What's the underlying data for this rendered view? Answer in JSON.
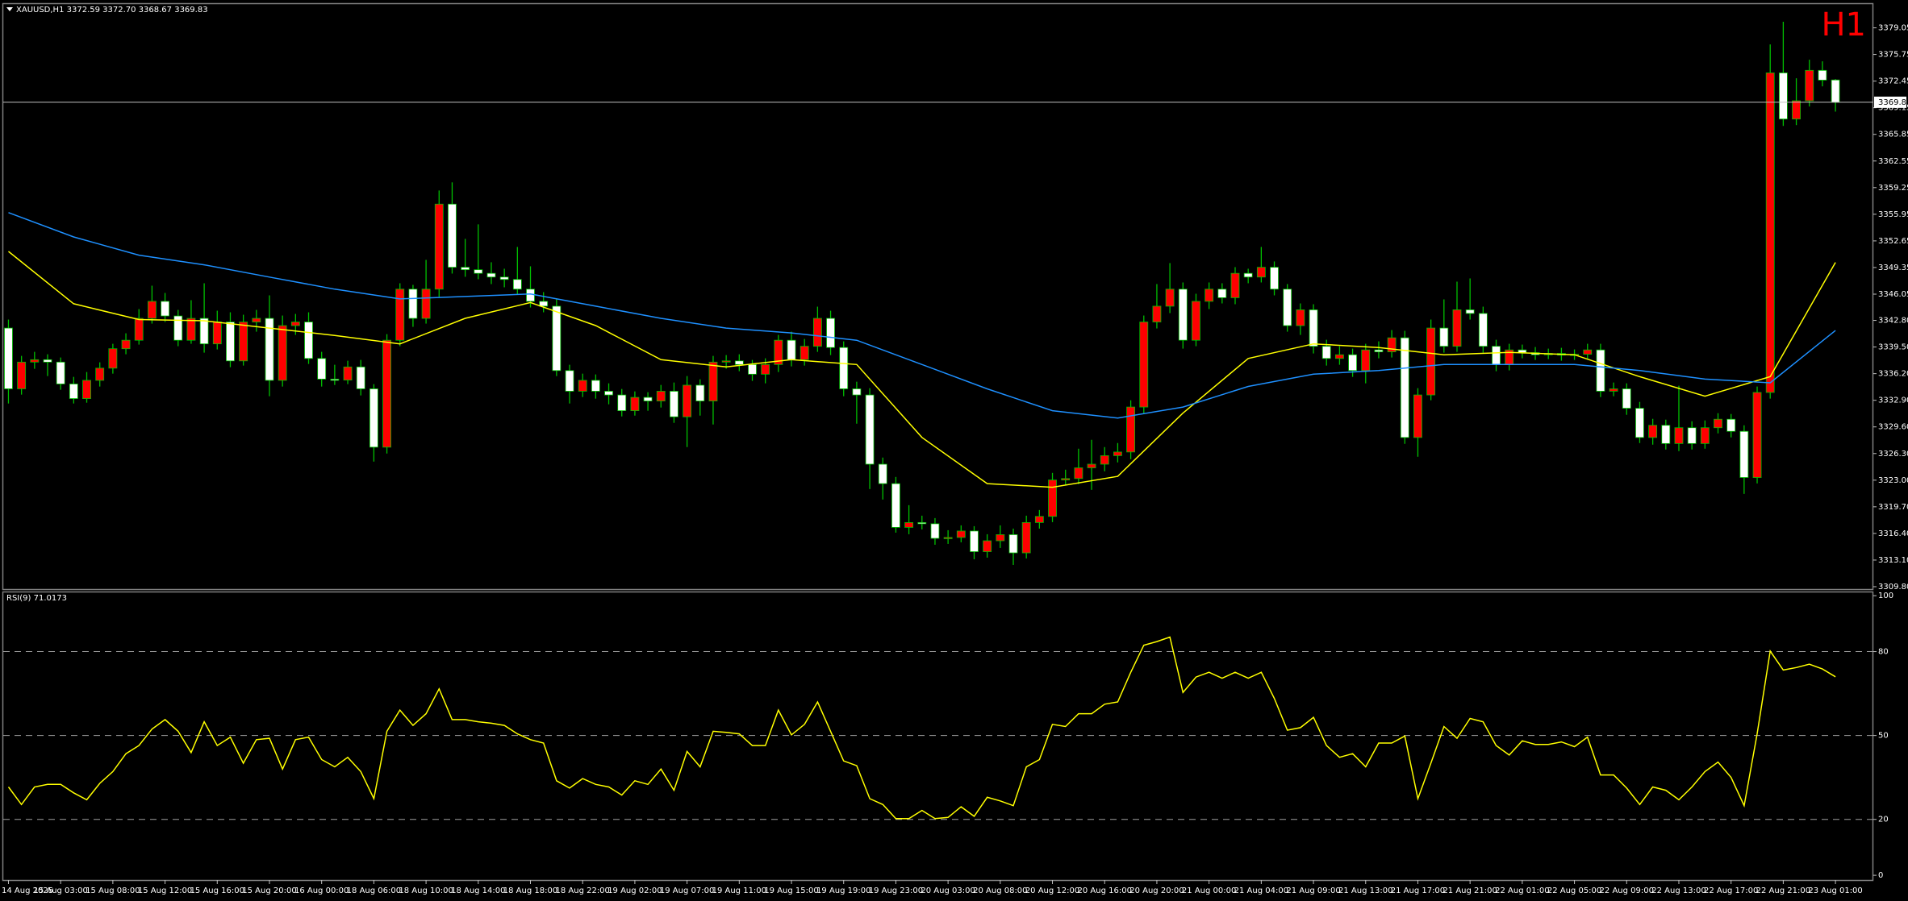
{
  "header": {
    "title": "XAUUSD,H1  3372.59 3372.70 3368.67 3369.83",
    "timeframe": "H1"
  },
  "chart_data": [
    {
      "type": "candlestick",
      "up_color": "#ff0000",
      "down_color": "#ffffff",
      "wick_color": "#00c000",
      "xlim": [
        -0.4,
        142.9
      ],
      "ylim": [
        3309.6,
        3381.9
      ],
      "yticks": [
        3379.05,
        3375.75,
        3372.45,
        3369.15,
        3365.85,
        3362.55,
        3359.25,
        3355.95,
        3352.65,
        3349.35,
        3346.05,
        {
          "value": 3342.8,
          "label": "3342.80"
        },
        {
          "value": 3339.5,
          "label": "3339.50"
        },
        {
          "value": 3336.2,
          "label": "3336.20"
        },
        {
          "value": 3332.9,
          "label": "3332.90"
        },
        {
          "value": 3329.6,
          "label": "3329.60"
        },
        {
          "value": 3326.3,
          "label": "3326.30"
        },
        {
          "value": 3323,
          "label": "3323.00"
        },
        {
          "value": 3319.7,
          "label": "3319.70"
        },
        {
          "value": 3316.4,
          "label": "3316.40"
        },
        {
          "value": 3313.1,
          "label": "3313.10"
        },
        {
          "value": 3309.8,
          "label": "3309.80"
        }
      ],
      "xticks": [
        {
          "value": 0,
          "label": "14 Aug 2025"
        },
        {
          "value": 4,
          "label": "15 Aug 03:00"
        },
        {
          "value": 8,
          "label": "15 Aug 08:00"
        },
        {
          "value": 12,
          "label": "15 Aug 12:00"
        },
        {
          "value": 16,
          "label": "15 Aug 16:00"
        },
        {
          "value": 20,
          "label": "15 Aug 20:00"
        },
        {
          "value": 24,
          "label": "16 Aug 00:00"
        },
        {
          "value": 28,
          "label": "18 Aug 06:00"
        },
        {
          "value": 32,
          "label": "18 Aug 10:00"
        },
        {
          "value": 36,
          "label": "18 Aug 14:00"
        },
        {
          "value": 40,
          "label": "18 Aug 18:00"
        },
        {
          "value": 44,
          "label": "18 Aug 22:00"
        },
        {
          "value": 48,
          "label": "19 Aug 02:00"
        },
        {
          "value": 52,
          "label": "19 Aug 07:00"
        },
        {
          "value": 56,
          "label": "19 Aug 11:00"
        },
        {
          "value": 60,
          "label": "19 Aug 15:00"
        },
        {
          "value": 64,
          "label": "19 Aug 19:00"
        },
        {
          "value": 68,
          "label": "19 Aug 23:00"
        },
        {
          "value": 72,
          "label": "20 Aug 03:00"
        },
        {
          "value": 76,
          "label": "20 Aug 08:00"
        },
        {
          "value": 80,
          "label": "20 Aug 12:00"
        },
        {
          "value": 84,
          "label": "20 Aug 16:00"
        },
        {
          "value": 88,
          "label": "20 Aug 20:00"
        },
        {
          "value": 92,
          "label": "21 Aug 00:00"
        },
        {
          "value": 96,
          "label": "21 Aug 04:00"
        },
        {
          "value": 100,
          "label": "21 Aug 09:00"
        },
        {
          "value": 104,
          "label": "21 Aug 13:00"
        },
        {
          "value": 108,
          "label": "21 Aug 17:00"
        },
        {
          "value": 112,
          "label": "21 Aug 21:00"
        },
        {
          "value": 116,
          "label": "22 Aug 01:00"
        },
        {
          "value": 120,
          "label": "22 Aug 05:00"
        },
        {
          "value": 124,
          "label": "22 Aug 09:00"
        },
        {
          "value": 128,
          "label": "22 Aug 13:00"
        },
        {
          "value": 132,
          "label": "22 Aug 17:00"
        },
        {
          "value": 136,
          "label": "22 Aug 21:00"
        },
        {
          "value": 140,
          "label": "23 Aug 01:00"
        }
      ],
      "last_price": 3369.83,
      "last_price_color": "#c0c0c0",
      "open": [
        3341.85,
        3334.32,
        3337.63,
        3337.93,
        3337.63,
        3334.92,
        3333.11,
        3335.37,
        3336.88,
        3339.29,
        3340.34,
        3343.05,
        3345.16,
        3343.35,
        3340.34,
        3343.05,
        3339.89,
        3342.6,
        3337.78,
        3342.6,
        3343.05,
        3335.37,
        3342.15,
        3342.6,
        3338.08,
        3335.52,
        3335.4,
        3337.03,
        3334.32,
        3327.09,
        3340.34,
        3346.67,
        3343.05,
        3346.67,
        3357.21,
        3349.38,
        3349.08,
        3348.63,
        3348.17,
        3347.87,
        3346.67,
        3345.16,
        3344.56,
        3336.58,
        3334.02,
        3335.37,
        3334.02,
        3333.56,
        3331.61,
        3333.26,
        3332.81,
        3334.02,
        3330.85,
        3334.77,
        3332.81,
        3337.63,
        3337.78,
        3337.33,
        3336.13,
        3337.33,
        3340.34,
        3337.93,
        3339.59,
        3343.05,
        3339.44,
        3334.32,
        3333.56,
        3324.98,
        3322.57,
        3317.15,
        3317.75,
        3317.6,
        3315.79,
        3315.9,
        3316.7,
        3314.14,
        3315.49,
        3316.25,
        3313.99,
        3317.75,
        3318.51,
        3323.02,
        3323.2,
        3324.53,
        3324.98,
        3326.04,
        3326.49,
        3332.06,
        3342.6,
        3344.56,
        3346.67,
        3340.34,
        3345.16,
        3346.67,
        3345.61,
        3348.63,
        3348.17,
        3349.38,
        3346.67,
        3342.15,
        3344.11,
        3339.59,
        3338.08,
        3338.54,
        3336.58,
        3339.14,
        3338.9,
        3340.64,
        3328.29,
        3333.56,
        3341.85,
        3339.59,
        3344.11,
        3343.66,
        3339.59,
        3337.33,
        3339.14,
        3338.8,
        3338.54,
        3338.7,
        3338.5,
        3338.6,
        3339.14,
        3334.02,
        3334.32,
        3331.91,
        3328.29,
        3329.8,
        3327.54,
        3329.5,
        3327.54,
        3329.5,
        3330.55,
        3329.05,
        3323.33,
        3333.87,
        3373.47,
        3367.75,
        3370.01,
        3373.78,
        3372.59
      ],
      "high": [
        3342.9,
        3338.4,
        3338.9,
        3338.6,
        3338.2,
        3335.8,
        3336.4,
        3337.6,
        3339.9,
        3341.2,
        3344.2,
        3347.1,
        3346.2,
        3344.1,
        3345.3,
        3347.4,
        3344.0,
        3343.8,
        3343.5,
        3344.1,
        3345.9,
        3343.4,
        3343.6,
        3343.8,
        3338.9,
        3337.3,
        3337.8,
        3337.9,
        3334.9,
        3341.1,
        3347.4,
        3347.2,
        3350.3,
        3358.9,
        3359.9,
        3352.9,
        3354.7,
        3350.0,
        3349.2,
        3351.9,
        3349.5,
        3346.3,
        3345.4,
        3337.3,
        3336.2,
        3336.1,
        3335.0,
        3334.3,
        3334.0,
        3333.9,
        3334.8,
        3335.1,
        3335.9,
        3335.5,
        3338.4,
        3338.5,
        3338.6,
        3337.9,
        3338.1,
        3341.0,
        3341.4,
        3340.5,
        3344.5,
        3344.0,
        3340.2,
        3335.2,
        3334.4,
        3325.8,
        3323.4,
        3319.9,
        3318.6,
        3318.3,
        3316.8,
        3317.4,
        3317.3,
        3316.3,
        3317.4,
        3317.0,
        3318.6,
        3319.3,
        3323.9,
        3324.3,
        3326.9,
        3328.0,
        3327.1,
        3327.6,
        3332.9,
        3343.4,
        3347.3,
        3349.9,
        3347.5,
        3346.1,
        3347.5,
        3347.4,
        3349.4,
        3349.2,
        3351.9,
        3350.1,
        3347.3,
        3344.9,
        3344.8,
        3340.4,
        3339.6,
        3339.3,
        3339.9,
        3340.2,
        3341.6,
        3341.5,
        3334.4,
        3342.9,
        3345.4,
        3347.6,
        3348.0,
        3344.5,
        3340.4,
        3339.9,
        3339.8,
        3339.5,
        3339.3,
        3339.4,
        3339.2,
        3339.9,
        3339.9,
        3335.1,
        3335.0,
        3332.7,
        3330.6,
        3330.5,
        3334.7,
        3330.3,
        3330.4,
        3331.3,
        3331.2,
        3329.8,
        3334.6,
        3377.0,
        3379.8,
        3372.8,
        3375.1,
        3374.9,
        3372.7
      ],
      "low": [
        3332.5,
        3333.6,
        3336.8,
        3335.9,
        3334.2,
        3332.5,
        3332.6,
        3334.6,
        3336.2,
        3338.6,
        3339.8,
        3342.4,
        3342.6,
        3339.6,
        3339.9,
        3338.8,
        3339.2,
        3337.0,
        3337.2,
        3341.4,
        3333.4,
        3334.6,
        3341.0,
        3337.4,
        3334.6,
        3334.8,
        3334.9,
        3333.5,
        3325.3,
        3326.3,
        3339.6,
        3342.0,
        3342.4,
        3345.6,
        3348.6,
        3348.2,
        3347.9,
        3347.3,
        3346.9,
        3346.0,
        3344.4,
        3343.8,
        3335.9,
        3332.5,
        3333.3,
        3333.1,
        3332.4,
        3330.9,
        3331.0,
        3331.6,
        3332.0,
        3330.1,
        3327.1,
        3331.0,
        3329.9,
        3336.8,
        3336.5,
        3335.3,
        3335.0,
        3336.4,
        3337.1,
        3337.2,
        3338.9,
        3338.5,
        3333.4,
        3330.0,
        3321.9,
        3320.6,
        3316.5,
        3316.3,
        3316.9,
        3315.0,
        3315.1,
        3315.3,
        3313.2,
        3313.4,
        3314.6,
        3312.5,
        3313.3,
        3317.0,
        3317.8,
        3322.4,
        3322.5,
        3321.8,
        3324.1,
        3325.2,
        3325.6,
        3331.3,
        3341.8,
        3343.7,
        3339.3,
        3339.6,
        3344.2,
        3344.9,
        3344.8,
        3347.4,
        3347.5,
        3345.9,
        3341.4,
        3341.0,
        3338.7,
        3337.2,
        3337.3,
        3335.8,
        3335.0,
        3338.1,
        3338.2,
        3327.5,
        3325.9,
        3332.9,
        3338.8,
        3338.9,
        3342.9,
        3338.8,
        3336.5,
        3336.6,
        3338.1,
        3337.9,
        3338.0,
        3337.8,
        3337.9,
        3338.0,
        3333.3,
        3333.4,
        3331.1,
        3327.6,
        3327.4,
        3326.8,
        3326.6,
        3326.8,
        3326.9,
        3328.8,
        3328.3,
        3321.3,
        3322.6,
        3333.1,
        3366.9,
        3367.0,
        3369.3,
        3371.8,
        3368.67
      ],
      "close": [
        3334.32,
        3337.63,
        3337.93,
        3337.63,
        3334.92,
        3333.11,
        3335.37,
        3336.88,
        3339.29,
        3340.34,
        3343.05,
        3345.16,
        3343.35,
        3340.34,
        3343.05,
        3339.89,
        3342.6,
        3337.78,
        3342.6,
        3343.05,
        3335.37,
        3342.15,
        3342.6,
        3338.08,
        3335.52,
        3335.4,
        3337.03,
        3334.32,
        3327.09,
        3340.34,
        3346.67,
        3343.05,
        3346.67,
        3357.21,
        3349.38,
        3349.08,
        3348.63,
        3348.17,
        3347.87,
        3346.67,
        3345.16,
        3344.56,
        3336.58,
        3334.02,
        3335.37,
        3334.02,
        3333.56,
        3331.61,
        3333.26,
        3332.81,
        3334.02,
        3330.85,
        3334.77,
        3332.81,
        3337.63,
        3337.78,
        3337.33,
        3336.13,
        3337.33,
        3340.34,
        3337.93,
        3339.59,
        3343.05,
        3339.44,
        3334.32,
        3333.56,
        3324.98,
        3322.57,
        3317.15,
        3317.75,
        3317.6,
        3315.79,
        3315.9,
        3316.7,
        3314.14,
        3315.49,
        3316.25,
        3313.99,
        3317.75,
        3318.51,
        3323.02,
        3323.2,
        3324.53,
        3324.98,
        3326.04,
        3326.49,
        3332.06,
        3342.6,
        3344.56,
        3346.67,
        3340.34,
        3345.16,
        3346.67,
        3345.61,
        3348.63,
        3348.17,
        3349.38,
        3346.67,
        3342.15,
        3344.11,
        3339.59,
        3338.08,
        3338.54,
        3336.58,
        3339.14,
        3338.9,
        3340.64,
        3328.29,
        3333.56,
        3341.85,
        3339.59,
        3344.11,
        3343.66,
        3339.59,
        3337.33,
        3339.14,
        3338.8,
        3338.54,
        3338.7,
        3338.5,
        3338.6,
        3339.14,
        3334.02,
        3334.32,
        3331.91,
        3328.29,
        3329.8,
        3327.54,
        3329.5,
        3327.54,
        3329.5,
        3330.55,
        3329.05,
        3323.33,
        3333.87,
        3373.47,
        3367.75,
        3370.01,
        3373.78,
        3372.57,
        3369.83
      ],
      "moving_averages": [
        {
          "color": "#ffff00",
          "x": [
            0,
            5,
            10,
            15,
            20,
            25,
            30,
            35,
            40,
            45,
            50,
            55,
            60,
            65,
            70,
            75,
            80,
            85,
            90,
            95,
            100,
            105,
            110,
            115,
            120,
            125,
            130,
            135,
            140
          ],
          "values": [
            3351.34,
            3344.86,
            3342.9,
            3342.75,
            3341.85,
            3340.94,
            3339.89,
            3343.05,
            3345.01,
            3342.15,
            3337.93,
            3337.03,
            3337.93,
            3337.33,
            3328.29,
            3322.57,
            3322.12,
            3323.47,
            3331.31,
            3338.08,
            3339.89,
            3339.44,
            3338.54,
            3338.84,
            3338.54,
            3335.82,
            3333.41,
            3335.82,
            3349.98
          ]
        },
        {
          "color": "#1e90ff",
          "x": [
            0,
            5,
            10,
            15,
            20,
            25,
            30,
            35,
            40,
            45,
            50,
            55,
            60,
            65,
            70,
            75,
            80,
            85,
            90,
            95,
            100,
            105,
            110,
            115,
            120,
            125,
            130,
            135,
            140
          ],
          "values": [
            3356.16,
            3353.14,
            3350.88,
            3349.68,
            3348.17,
            3346.67,
            3345.46,
            3345.76,
            3346.07,
            3344.56,
            3343.05,
            3341.85,
            3341.25,
            3340.34,
            3337.33,
            3334.32,
            3331.61,
            3330.7,
            3332.06,
            3334.62,
            3336.13,
            3336.58,
            3337.33,
            3337.33,
            3337.33,
            3336.58,
            3335.52,
            3335.06,
            3341.55
          ]
        }
      ]
    },
    {
      "type": "line",
      "title": "RSI(9) 71.0173",
      "color": "#ffff00",
      "level_color": "#a0a0a0",
      "xlim": [
        -0.4,
        142.9
      ],
      "ylim": [
        -1.7,
        101.2
      ],
      "yticks": [
        100,
        80,
        50,
        20,
        0
      ],
      "levels": [
        80,
        50,
        20
      ],
      "values": [
        31.6,
        25.3,
        31.6,
        32.5,
        32.5,
        29.5,
        27.0,
        32.9,
        37.1,
        43.5,
        46.4,
        52.3,
        55.7,
        51.5,
        43.9,
        54.9,
        46.4,
        49.4,
        40.1,
        48.5,
        49.0,
        38.0,
        48.5,
        49.4,
        41.4,
        38.8,
        42.2,
        37.1,
        27.4,
        51.5,
        59.1,
        53.6,
        57.8,
        66.7,
        55.7,
        55.7,
        54.9,
        54.4,
        53.6,
        50.6,
        48.5,
        47.3,
        33.8,
        31.2,
        34.6,
        32.5,
        31.6,
        28.7,
        33.8,
        32.5,
        38.0,
        30.4,
        44.3,
        38.8,
        51.5,
        51.1,
        50.6,
        46.4,
        46.4,
        59.1,
        50.2,
        54.0,
        62.0,
        51.5,
        40.9,
        39.2,
        27.4,
        25.3,
        20.3,
        20.3,
        23.2,
        20.3,
        20.7,
        24.5,
        21.1,
        27.9,
        26.6,
        24.9,
        38.8,
        41.4,
        54.0,
        53.2,
        57.8,
        57.8,
        61.2,
        62.0,
        72.6,
        82.3,
        83.6,
        85.2,
        65.4,
        70.9,
        72.6,
        70.5,
        72.6,
        70.5,
        72.6,
        63.3,
        51.9,
        52.8,
        56.5,
        46.4,
        42.2,
        43.5,
        38.8,
        47.3,
        47.3,
        49.8,
        27.4,
        40.1,
        53.2,
        49.0,
        56.1,
        54.9,
        46.4,
        43.0,
        48.1,
        46.8,
        46.8,
        47.7,
        46.0,
        49.4,
        35.9,
        35.9,
        31.2,
        25.3,
        31.6,
        30.4,
        27.0,
        31.6,
        37.1,
        40.5,
        35.0,
        24.9,
        50.6,
        80.2,
        73.4,
        74.3,
        75.5,
        73.8,
        71.0
      ]
    }
  ]
}
